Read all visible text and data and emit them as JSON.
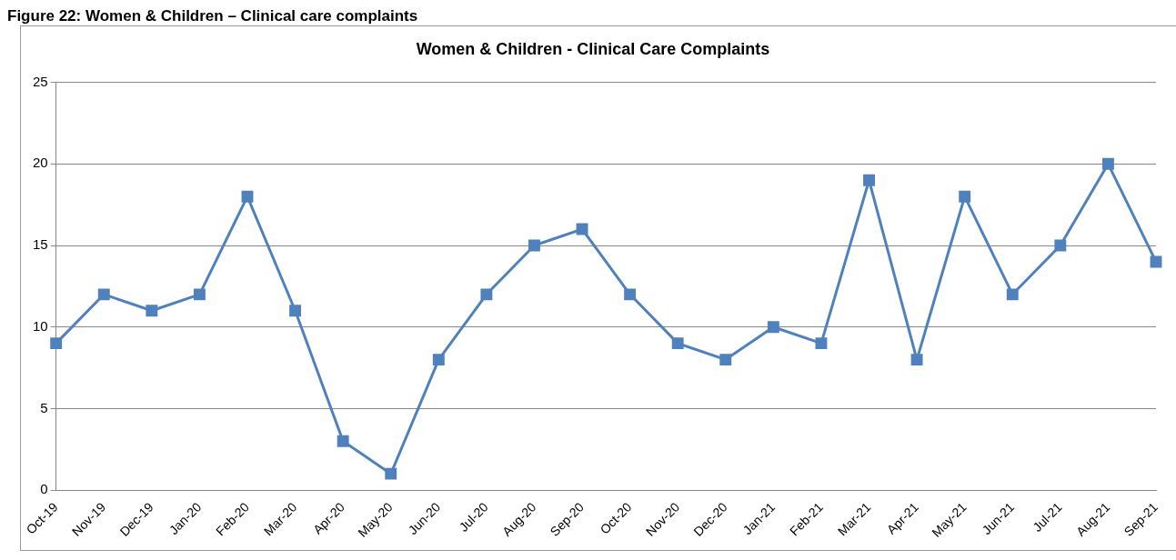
{
  "chart_data": {
    "type": "line",
    "title": "Women & Children - Clinical Care Complaints",
    "annotations": [
      "Figure 22: Women & Children – Clinical care complaints"
    ],
    "categories": [
      "Oct-19",
      "Nov-19",
      "Dec-19",
      "Jan-20",
      "Feb-20",
      "Mar-20",
      "Apr-20",
      "May-20",
      "Jun-20",
      "Jul-20",
      "Aug-20",
      "Sep-20",
      "Oct-20",
      "Nov-20",
      "Dec-20",
      "Jan-21",
      "Feb-21",
      "Mar-21",
      "Apr-21",
      "May-21",
      "Jun-21",
      "Jul-21",
      "Aug-21",
      "Sep-21"
    ],
    "series": [
      {
        "color": "#4f81bd",
        "values": [
          9,
          12,
          11,
          12,
          18,
          11,
          3,
          1,
          8,
          12,
          15,
          16,
          12,
          9,
          8,
          10,
          9,
          19,
          8,
          18,
          12,
          15,
          20,
          14
        ]
      }
    ],
    "ylim": [
      0,
      25
    ],
    "yticks": [
      0,
      5,
      10,
      15,
      20,
      25
    ],
    "grid": "y",
    "legend": false,
    "marker": "square",
    "line_style": "solid"
  }
}
